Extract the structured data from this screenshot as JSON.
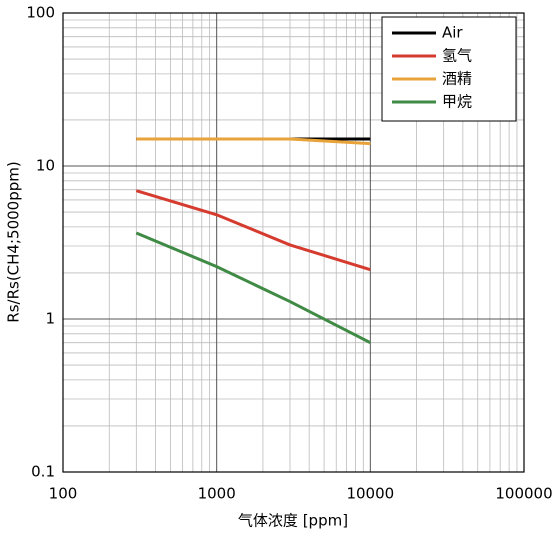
{
  "chart_data": {
    "type": "line",
    "x_label": "气体浓度 [ppm]",
    "y_label": "Rs/Rs(CH4;5000ppm)",
    "x": [
      300,
      1000,
      3000,
      10000
    ],
    "series": [
      {
        "name": "Air",
        "color": "#000000",
        "values": [
          15,
          15,
          15,
          15
        ]
      },
      {
        "name": "氢气",
        "color": "#d63b2f",
        "values": [
          6.9,
          4.8,
          3.05,
          2.1
        ]
      },
      {
        "name": "酒精",
        "color": "#e8a33a",
        "values": [
          15,
          15,
          15,
          14
        ]
      },
      {
        "name": "甲烷",
        "color": "#3f8a44",
        "values": [
          3.65,
          2.2,
          1.3,
          0.7
        ]
      }
    ],
    "xlim": [
      100,
      100000
    ],
    "xticks": [
      100,
      1000,
      10000,
      100000
    ],
    "ylim": [
      0.1,
      100
    ],
    "yticks": [
      0.1,
      1,
      10,
      100
    ],
    "log_x": true,
    "log_y": true,
    "grid": true,
    "minor_grid": true,
    "legend": "top-right"
  }
}
